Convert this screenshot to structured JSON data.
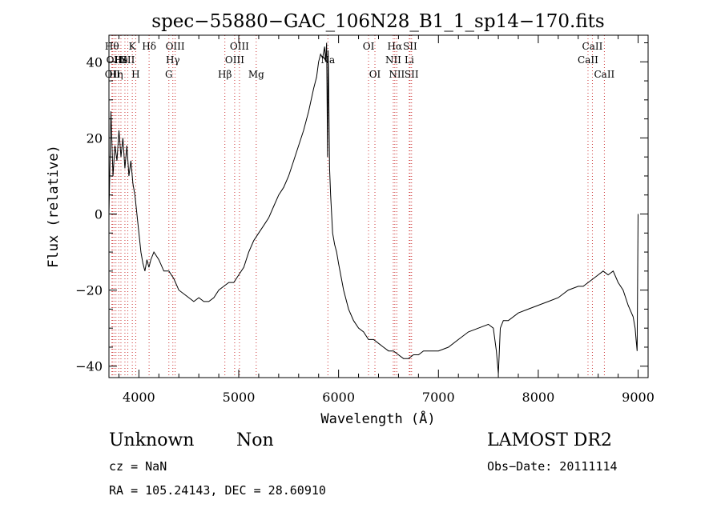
{
  "chart_data": {
    "type": "line",
    "title": "spec−55880−GAC_106N28_B1_1_sp14−170.fits",
    "xlabel": "Wavelength (Å)",
    "ylabel": "Flux (relative)",
    "xlim": [
      3700,
      9100
    ],
    "ylim": [
      -43,
      47
    ],
    "xticks": [
      4000,
      5000,
      6000,
      7000,
      8000,
      9000
    ],
    "yticks": [
      -40,
      -20,
      0,
      20,
      40
    ],
    "ytick_labels": [
      "−40",
      "−20",
      "0",
      "20",
      "40"
    ],
    "grid": false,
    "series": [
      {
        "x": [
          3700,
          3720,
          3740,
          3760,
          3780,
          3800,
          3820,
          3840,
          3860,
          3880,
          3900,
          3920,
          3940,
          3960,
          3980,
          4000,
          4020,
          4040,
          4060,
          4080,
          4100,
          4120,
          4150,
          4200,
          4250,
          4300,
          4350,
          4400,
          4450,
          4500,
          4550,
          4600,
          4650,
          4700,
          4750,
          4800,
          4850,
          4900,
          4950,
          5000,
          5050,
          5100,
          5150,
          5200,
          5250,
          5300,
          5350,
          5400,
          5450,
          5500,
          5550,
          5600,
          5650,
          5700,
          5750,
          5780,
          5800,
          5820,
          5840,
          5860,
          5870,
          5880,
          5885,
          5890,
          5895,
          5900,
          5910,
          5920,
          5940,
          5960,
          5980,
          6000,
          6050,
          6100,
          6150,
          6200,
          6250,
          6300,
          6350,
          6400,
          6450,
          6500,
          6550,
          6600,
          6650,
          6700,
          6750,
          6800,
          6850,
          6900,
          6950,
          7000,
          7100,
          7200,
          7300,
          7400,
          7500,
          7550,
          7580,
          7600,
          7620,
          7650,
          7700,
          7800,
          7900,
          8000,
          8100,
          8200,
          8300,
          8400,
          8450,
          8500,
          8550,
          8600,
          8650,
          8700,
          8750,
          8800,
          8850,
          8900,
          8950,
          8970,
          8980,
          8990,
          9000
        ],
        "y": [
          0,
          27,
          10,
          18,
          14,
          22,
          15,
          20,
          12,
          18,
          10,
          14,
          8,
          5,
          0,
          -5,
          -10,
          -13,
          -15,
          -12,
          -14,
          -12,
          -10,
          -12,
          -15,
          -15,
          -17,
          -20,
          -21,
          -22,
          -23,
          -22,
          -23,
          -23,
          -22,
          -20,
          -19,
          -18,
          -18,
          -16,
          -14,
          -10,
          -7,
          -5,
          -3,
          -1,
          2,
          5,
          7,
          10,
          14,
          18,
          22,
          27,
          33,
          36,
          40,
          42,
          41,
          44,
          40,
          45,
          30,
          15,
          43,
          35,
          12,
          5,
          -5,
          -8,
          -10,
          -13,
          -20,
          -25,
          -28,
          -30,
          -31,
          -33,
          -33,
          -34,
          -35,
          -36,
          -36,
          -37,
          -38,
          -38,
          -37,
          -37,
          -36,
          -36,
          -36,
          -36,
          -35,
          -33,
          -31,
          -30,
          -29,
          -30,
          -36,
          -42,
          -30,
          -28,
          -28,
          -26,
          -25,
          -24,
          -23,
          -22,
          -20,
          -19,
          -19,
          -18,
          -17,
          -16,
          -15,
          -16,
          -15,
          -18,
          -20,
          -24,
          -27,
          -30,
          -33,
          -36,
          0
        ]
      }
    ],
    "lines": [
      {
        "x": 3730,
        "row": 1,
        "label": "Hθ"
      },
      {
        "x": 3750,
        "row": 2,
        "label": "OII"
      },
      {
        "x": 3735,
        "row": 3,
        "label": "OII"
      },
      {
        "x": 3770,
        "row": 3,
        "label": "Hη"
      },
      {
        "x": 3798,
        "row": 2,
        "label": "H"
      },
      {
        "x": 3820,
        "row": 2,
        "label": "He"
      },
      {
        "x": 3860,
        "row": 2,
        "label": "I"
      },
      {
        "x": 3889,
        "row": 2,
        "label": "SII"
      },
      {
        "x": 3934,
        "row": 1,
        "label": "K"
      },
      {
        "x": 3968,
        "row": 3,
        "label": "H"
      },
      {
        "x": 4102,
        "row": 1,
        "label": "Hδ"
      },
      {
        "x": 4300,
        "row": 3,
        "label": "G"
      },
      {
        "x": 4340,
        "row": 2,
        "label": "Hγ"
      },
      {
        "x": 4363,
        "row": 1,
        "label": "OIII"
      },
      {
        "x": 4861,
        "row": 3,
        "label": "Hβ"
      },
      {
        "x": 4959,
        "row": 2,
        "label": "OIII"
      },
      {
        "x": 5007,
        "row": 1,
        "label": "OIII"
      },
      {
        "x": 5175,
        "row": 3,
        "label": "Mg"
      },
      {
        "x": 5893,
        "row": 2,
        "label": "Na"
      },
      {
        "x": 6300,
        "row": 1,
        "label": "OI"
      },
      {
        "x": 6364,
        "row": 3,
        "label": "OI"
      },
      {
        "x": 6548,
        "row": 2,
        "label": "NII"
      },
      {
        "x": 6563,
        "row": 1,
        "label": "Hα"
      },
      {
        "x": 6583,
        "row": 3,
        "label": "NII"
      },
      {
        "x": 6708,
        "row": 2,
        "label": "Li"
      },
      {
        "x": 6716,
        "row": 1,
        "label": "SII"
      },
      {
        "x": 6731,
        "row": 3,
        "label": "SII"
      },
      {
        "x": 8498,
        "row": 2,
        "label": "CaII"
      },
      {
        "x": 8542,
        "row": 1,
        "label": "CaII"
      },
      {
        "x": 8662,
        "row": 3,
        "label": "CaII"
      }
    ]
  },
  "info": {
    "class": "Unknown",
    "subclass": "Non",
    "release": "LAMOST DR2",
    "cz": "cz = NaN",
    "obs_date": "Obs−Date: 20111114",
    "coords": "RA = 105.24143, DEC =  28.60910"
  }
}
